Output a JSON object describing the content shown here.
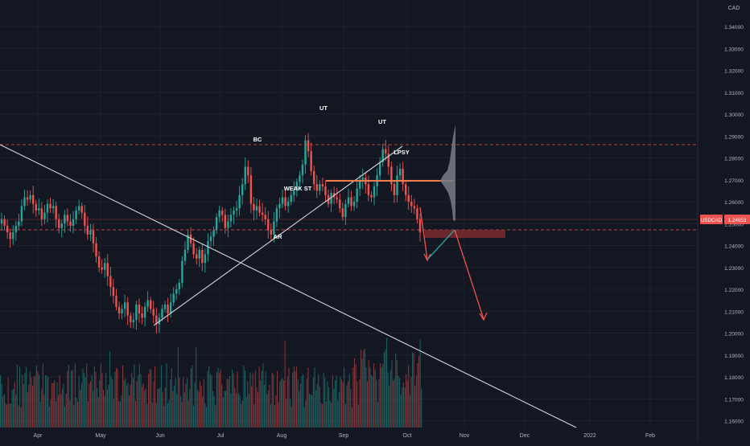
{
  "chart_data": {
    "type": "candlestick",
    "symbol": "USDCAD",
    "currency": "CAD",
    "last_price": "1.24653",
    "price_levels": [
      "1.34000",
      "1.33000",
      "1.32000",
      "1.31000",
      "1.30000",
      "1.29000",
      "1.28000",
      "1.27000",
      "1.26000",
      "1.25000",
      "1.24000",
      "1.23000",
      "1.22000",
      "1.21000",
      "1.20000",
      "1.19000",
      "1.18000",
      "1.17000",
      "1.16000"
    ],
    "time_labels": [
      "Apr",
      "May",
      "Jun",
      "Jul",
      "Aug",
      "Sep",
      "Oct",
      "Nov",
      "Dec",
      "2022",
      "Feb"
    ],
    "ylim": [
      1.153,
      1.3435
    ],
    "annotations": [
      {
        "label": "BC",
        "price": 1.2815
      },
      {
        "label": "UT",
        "price": 1.296
      },
      {
        "label": "UT",
        "price": 1.2905
      },
      {
        "label": "LPSY",
        "price": 1.2775
      },
      {
        "label": "WEAK ST",
        "price": 1.264
      },
      {
        "label": "AR",
        "price": 1.244
      }
    ],
    "levels": {
      "upper_range": 1.2812,
      "lower_range": 1.242,
      "point_of_control": 1.2645,
      "supply_zone": [
        1.2385,
        1.2418
      ]
    },
    "close_series": [
      1.252,
      1.249,
      1.246,
      1.243,
      1.246,
      1.249,
      1.251,
      1.258,
      1.262,
      1.261,
      1.263,
      1.259,
      1.256,
      1.257,
      1.252,
      1.255,
      1.259,
      1.257,
      1.258,
      1.252,
      1.248,
      1.25,
      1.254,
      1.251,
      1.249,
      1.252,
      1.256,
      1.258,
      1.255,
      1.249,
      1.245,
      1.247,
      1.241,
      1.235,
      1.23,
      1.229,
      1.232,
      1.226,
      1.221,
      1.217,
      1.212,
      1.209,
      1.211,
      1.214,
      1.208,
      1.205,
      1.206,
      1.213,
      1.209,
      1.207,
      1.212,
      1.215,
      1.211,
      1.208,
      1.204,
      1.207,
      1.211,
      1.213,
      1.209,
      1.214,
      1.218,
      1.22,
      1.223,
      1.233,
      1.238,
      1.245,
      1.241,
      1.236,
      1.234,
      1.238,
      1.232,
      1.236,
      1.242,
      1.244,
      1.247,
      1.253,
      1.256,
      1.254,
      1.248,
      1.251,
      1.254,
      1.256,
      1.257,
      1.263,
      1.268,
      1.276,
      1.272,
      1.259,
      1.256,
      1.258,
      1.255,
      1.254,
      1.252,
      1.247,
      1.245,
      1.251,
      1.257,
      1.259,
      1.262,
      1.258,
      1.26,
      1.263,
      1.265,
      1.269,
      1.272,
      1.277,
      1.288,
      1.283,
      1.274,
      1.268,
      1.265,
      1.268,
      1.267,
      1.263,
      1.259,
      1.264,
      1.262,
      1.261,
      1.257,
      1.253,
      1.259,
      1.262,
      1.258,
      1.26,
      1.266,
      1.27,
      1.271,
      1.268,
      1.263,
      1.262,
      1.267,
      1.272,
      1.278,
      1.284,
      1.282,
      1.276,
      1.268,
      1.263,
      1.272,
      1.275,
      1.268,
      1.263,
      1.26,
      1.258,
      1.257,
      1.252,
      1.246
    ]
  }
}
